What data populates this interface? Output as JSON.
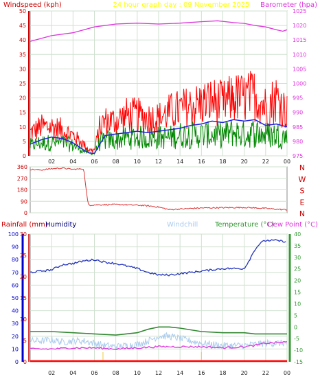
{
  "header": {
    "windspeed_label": "Windspeed (kph)",
    "graph_title": "24 hour graph day : 09 November 2025",
    "barometer_label": "Barometer (hpa)"
  },
  "footer": {
    "rainfall_label": "Rainfall (mm)",
    "humidity_label": "Humidity",
    "windchill_label": "Windchill",
    "temperature_label": "Temperature (°C)",
    "dewpoint_label": "Dew Point (°C)"
  },
  "colors": {
    "axis_red": "#cc0000",
    "grid": "#cfe0cf",
    "title": "#ffff00",
    "barometer": "#dd33dd",
    "gust": "#ff0000",
    "avgwind": "#008800",
    "windavg_line": "#2222dd",
    "direction": "#dd3333",
    "humidity": "#2233bb",
    "windchill": "#aaccee",
    "temperature": "#338833",
    "dewpoint": "#dd33dd",
    "rain": "#ff0000",
    "blue_axis": "#0000cc",
    "green_axis": "#339933"
  },
  "chart_data": [
    {
      "type": "line",
      "title": "24 hour graph day : 09 November 2025",
      "x_ticks": [
        "02",
        "04",
        "06",
        "08",
        "10",
        "12",
        "14",
        "16",
        "18",
        "20",
        "22",
        "00"
      ],
      "ylabel_left": "Windspeed (kph)",
      "ylim_left": [
        0,
        50
      ],
      "yticks_left": [
        0,
        5,
        10,
        15,
        20,
        25,
        30,
        35,
        40,
        45,
        50
      ],
      "ylabel_right": "Barometer (hpa)",
      "ylim_right": [
        975,
        1025
      ],
      "yticks_right": [
        975,
        980,
        985,
        990,
        995,
        1000,
        1005,
        1010,
        1015,
        1020,
        1025
      ],
      "series": [
        {
          "name": "Barometer (hpa)",
          "axis": "right",
          "x": [
            0,
            2,
            4,
            6,
            8,
            10,
            12,
            14,
            16,
            17.5,
            19,
            20,
            21,
            22,
            23,
            23.6,
            24
          ],
          "y": [
            1014.5,
            1016.5,
            1017.5,
            1019.5,
            1020.5,
            1020.8,
            1020.5,
            1020.8,
            1021.3,
            1021.6,
            1021.0,
            1020.7,
            1020.0,
            1019.5,
            1018.5,
            1018.0,
            1018.5
          ]
        },
        {
          "axis": "left",
          "x": [
            0,
            1,
            2,
            3,
            4,
            5,
            5.5,
            6,
            6.5,
            7,
            8,
            9,
            10,
            11,
            12,
            13,
            14,
            15,
            16,
            17,
            18,
            19,
            20,
            21,
            22,
            23,
            24
          ],
          "y": [
            8,
            10,
            10,
            9,
            7,
            4,
            2,
            2,
            10,
            12,
            12,
            14,
            14,
            13,
            13,
            15,
            16,
            17,
            18,
            19,
            18,
            20,
            20,
            21,
            17,
            20,
            15
          ]
        },
        {
          "axis": "left",
          "x": [
            0,
            1,
            2,
            3,
            4,
            5,
            5.5,
            6,
            6.5,
            7,
            8,
            9,
            10,
            11,
            12,
            13,
            14,
            15,
            16,
            17,
            18,
            19,
            20,
            21,
            22,
            23,
            24
          ],
          "y": [
            4,
            5,
            5,
            5,
            4,
            2,
            1,
            1,
            5,
            6,
            6,
            7,
            7,
            7,
            7,
            7,
            8,
            8,
            8,
            8,
            8,
            9,
            8,
            9,
            8,
            8,
            7
          ]
        },
        {
          "axis": "left",
          "x": [
            0,
            1,
            2,
            3,
            4,
            5,
            5.5,
            6,
            6.5,
            7,
            8,
            9,
            10,
            11,
            12,
            13,
            14,
            15,
            16,
            17,
            18,
            19,
            20,
            21,
            22,
            23,
            24
          ],
          "y": [
            4,
            5.5,
            6.5,
            6,
            4.5,
            2,
            1,
            0.8,
            4,
            7,
            7.5,
            8,
            8.5,
            8,
            8.5,
            9,
            9.5,
            10.5,
            11,
            12,
            11.5,
            12.5,
            12,
            12.5,
            10.5,
            11,
            10
          ]
        }
      ]
    },
    {
      "type": "line",
      "yticks_left": [
        0,
        90,
        180,
        270,
        360
      ],
      "ylim_left": [
        0,
        360
      ],
      "right_labels": [
        "N",
        "W",
        "S",
        "E",
        "N"
      ],
      "series": [
        {
          "axis": "left",
          "x": [
            0,
            1,
            2,
            3,
            4,
            5,
            5.2,
            5.4,
            5.6,
            6,
            8,
            10,
            11,
            12,
            13,
            14,
            16,
            18,
            20,
            22,
            23,
            24
          ],
          "y": [
            340,
            335,
            345,
            350,
            340,
            345,
            200,
            70,
            60,
            62,
            65,
            60,
            55,
            45,
            25,
            30,
            38,
            40,
            42,
            35,
            28,
            24
          ]
        }
      ]
    },
    {
      "type": "line",
      "x_ticks": [
        "02",
        "04",
        "06",
        "08",
        "10",
        "12",
        "14",
        "16",
        "18",
        "20",
        "22",
        "00"
      ],
      "ylabel_humidity": "Humidity",
      "ylim_humidity": [
        0,
        100
      ],
      "yticks_humidity": [
        0,
        10,
        20,
        30,
        40,
        50,
        60,
        70,
        80,
        90,
        100
      ],
      "ylabel_rain": "Rainfall (mm)",
      "ylim_rain": [
        0,
        30
      ],
      "yticks_rain": [
        0,
        5,
        10,
        15,
        20,
        25,
        30
      ],
      "ylabel_temp": "Temperature (°C)",
      "ylim_temp": [
        -15,
        40
      ],
      "yticks_temp": [
        -15,
        -10,
        -5,
        0,
        5,
        10,
        15,
        20,
        25,
        30,
        35,
        40
      ],
      "series": [
        {
          "name": "Humidity",
          "axis": "humidity",
          "x": [
            0,
            1,
            2,
            3,
            4,
            5,
            6,
            7,
            8,
            9,
            10,
            11,
            12,
            13,
            14,
            15,
            16,
            17,
            18,
            19,
            20,
            20.5,
            21,
            21.5,
            22,
            23,
            24
          ],
          "y": [
            70,
            71,
            72,
            76,
            77,
            79,
            80,
            78,
            77,
            75,
            73,
            70,
            68,
            68,
            69,
            70,
            71,
            72,
            73,
            73,
            73,
            80,
            88,
            93,
            95,
            95,
            94
          ]
        },
        {
          "name": "Windchill",
          "axis": "temp",
          "x": [
            0,
            1,
            2,
            3,
            4,
            5,
            6,
            7,
            8,
            9,
            10,
            11,
            12,
            13,
            14,
            15,
            16,
            17,
            18,
            19,
            20,
            21,
            22,
            23,
            24
          ],
          "y": [
            -6,
            -6,
            -5.5,
            -6.5,
            -6,
            -6,
            -7,
            -8,
            -8.5,
            -8,
            -7.5,
            -6,
            -4,
            -4,
            -5,
            -6,
            -7,
            -7.5,
            -8,
            -8,
            -8,
            -7.5,
            -7,
            -7,
            -7
          ]
        },
        {
          "name": "Temperature (°C)",
          "axis": "temp",
          "x": [
            0,
            2,
            4,
            6,
            8,
            10,
            11,
            12,
            13,
            14,
            16,
            18,
            20,
            21,
            22,
            24
          ],
          "y": [
            -2,
            -2,
            -2.5,
            -3,
            -3.5,
            -2.5,
            -1,
            0,
            0,
            -0.5,
            -2,
            -2.5,
            -2.5,
            -3,
            -3,
            -3
          ]
        },
        {
          "name": "Dew Point (°C)",
          "axis": "temp",
          "x": [
            0,
            2,
            4,
            6,
            8,
            10,
            12,
            14,
            16,
            18,
            20,
            21,
            22,
            24
          ],
          "y": [
            -9.5,
            -9.5,
            -9,
            -9,
            -9.5,
            -9,
            -8.5,
            -8.5,
            -8.5,
            -9,
            -8.5,
            -8,
            -7,
            -6.5
          ]
        },
        {
          "name": "Rainfall (mm)",
          "axis": "rain",
          "x": [
            0,
            24
          ],
          "y": [
            0,
            0
          ]
        }
      ]
    }
  ]
}
